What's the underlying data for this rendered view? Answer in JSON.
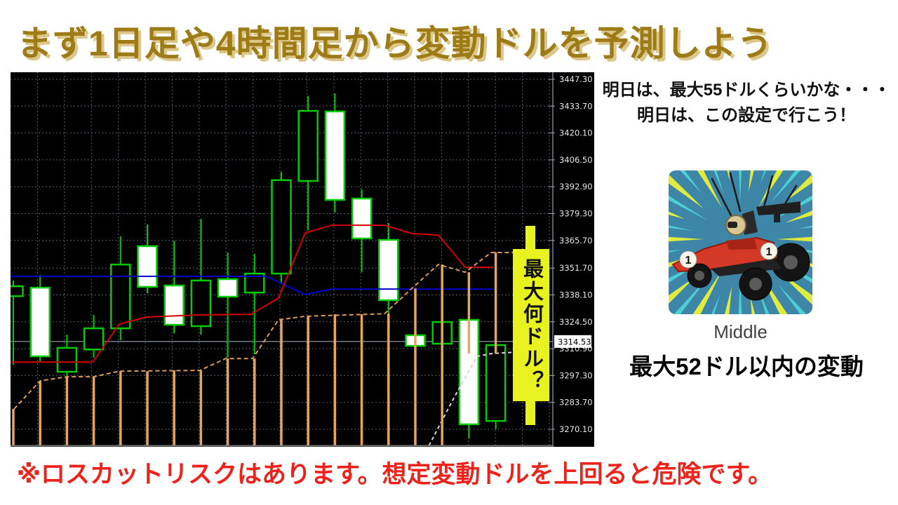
{
  "title": {
    "text": "まず1日足や4時間足から変動ドルを予測しよう",
    "color": "#9d7b16",
    "shadow_color": "#dcc68a"
  },
  "chart_data": {
    "type": "candlestick",
    "description": "MT4-style daily gold (XAU/USD) candlestick chart, black background, grid on",
    "y_axis": {
      "tick_labels": [
        "3447.30",
        "3433.70",
        "3420.10",
        "3406.50",
        "3392.90",
        "3379.30",
        "3365.70",
        "3351.70",
        "3338.10",
        "3324.50",
        "3310.90",
        "3297.30",
        "3283.70",
        "3270.10"
      ],
      "tick_color": "#e8e8e8"
    },
    "current_price": "3314.53",
    "colors": {
      "background": "#000000",
      "grid": "#55606e",
      "candle": "#00cc00",
      "bull_fill": "#ffffff",
      "bear_fill": "#000000",
      "ma_red": "#d40000",
      "ma_blue": "#0000c8",
      "upper_band": "#dc9a55",
      "lower_band": "#e3cfe3",
      "bars": "#e6a55f",
      "price_line": "#8a96a4",
      "axis_line": "#9aa0a8"
    },
    "candles": [
      {
        "o": 3342.5,
        "h": 3345.4,
        "l": 3302.7,
        "c": 3337.5,
        "bull": false
      },
      {
        "o": 3307.0,
        "h": 3348.2,
        "l": 3304.5,
        "c": 3341.8,
        "bull": true
      },
      {
        "o": 3311.3,
        "h": 3318.0,
        "l": 3296.3,
        "c": 3299.2,
        "bull": false
      },
      {
        "o": 3321.2,
        "h": 3327.9,
        "l": 3306.3,
        "c": 3310.5,
        "bull": false
      },
      {
        "o": 3353.5,
        "h": 3367.7,
        "l": 3315.2,
        "c": 3321.2,
        "bull": false
      },
      {
        "o": 3342.2,
        "h": 3373.8,
        "l": 3339.0,
        "c": 3362.8,
        "bull": true
      },
      {
        "o": 3323.0,
        "h": 3365.6,
        "l": 3318.7,
        "c": 3342.9,
        "bull": true
      },
      {
        "o": 3345.4,
        "h": 3376.6,
        "l": 3318.0,
        "c": 3322.3,
        "bull": false
      },
      {
        "o": 3337.2,
        "h": 3359.6,
        "l": 3306.3,
        "c": 3346.1,
        "bull": true
      },
      {
        "o": 3348.9,
        "h": 3358.9,
        "l": 3308.1,
        "c": 3339.3,
        "bull": false
      },
      {
        "o": 3396.2,
        "h": 3400.4,
        "l": 3343.6,
        "c": 3348.9,
        "bull": false
      },
      {
        "o": 3431.3,
        "h": 3438.8,
        "l": 3370.9,
        "c": 3395.8,
        "bull": false
      },
      {
        "o": 3386.2,
        "h": 3440.2,
        "l": 3379.8,
        "c": 3431.0,
        "bull": true
      },
      {
        "o": 3366.7,
        "h": 3391.5,
        "l": 3349.6,
        "c": 3386.9,
        "bull": true
      },
      {
        "o": 3335.4,
        "h": 3374.5,
        "l": 3327.6,
        "c": 3366.0,
        "bull": true
      },
      {
        "o": 3312.3,
        "h": 3320.5,
        "l": 3309.8,
        "c": 3317.7,
        "bull": true
      },
      {
        "o": 3324.4,
        "h": 3325.8,
        "l": 3311.6,
        "c": 3313.4,
        "bull": false
      },
      {
        "o": 3272.6,
        "h": 3329.4,
        "l": 3265.4,
        "c": 3325.5,
        "bull": true
      },
      {
        "o": 3312.7,
        "h": 3318.7,
        "l": 3270.1,
        "c": 3274.3,
        "bull": false
      }
    ],
    "series": {
      "ma_red": [
        [
          -0.1,
          3304.1
        ],
        [
          2.96,
          3304.1
        ],
        [
          3.95,
          3323.3
        ],
        [
          4.95,
          3326.9
        ],
        [
          6.94,
          3328.0
        ],
        [
          8.87,
          3328.3
        ],
        [
          9.89,
          3336.5
        ],
        [
          10.89,
          3369.5
        ],
        [
          11.88,
          3373.4
        ],
        [
          13.85,
          3373.4
        ],
        [
          14.87,
          3369.2
        ],
        [
          15.86,
          3368.4
        ],
        [
          16.86,
          3352.1
        ],
        [
          17.9,
          3352.1
        ]
      ],
      "ma_blue": [
        [
          -0.1,
          3347.5
        ],
        [
          9.45,
          3347.5
        ],
        [
          10.89,
          3338.3
        ],
        [
          11.88,
          3341.1
        ],
        [
          17.9,
          3341.1
        ]
      ],
      "upper_band": [
        [
          0.03,
          3280.4
        ],
        [
          1,
          3294.6
        ],
        [
          2,
          3296.7
        ],
        [
          3,
          3296.7
        ],
        [
          3.95,
          3299.5
        ],
        [
          6.96,
          3299.9
        ],
        [
          7.93,
          3305.9
        ],
        [
          8.93,
          3305.9
        ],
        [
          9.89,
          3325.5
        ],
        [
          10.89,
          3327.3
        ],
        [
          13.85,
          3328.6
        ],
        [
          14.87,
          3341.4
        ],
        [
          15.86,
          3353.5
        ],
        [
          16.86,
          3349.6
        ],
        [
          17.83,
          3359.6
        ],
        [
          18.65,
          3359.6
        ]
      ],
      "lower_band": [
        [
          15.4,
          3259.0
        ],
        [
          16.4,
          3285.0
        ],
        [
          17.3,
          3307.0
        ],
        [
          17.85,
          3308.4
        ],
        [
          20.1,
          3310.2
        ]
      ],
      "bars": [
        [
          0,
          3280.4,
          null
        ],
        [
          1,
          3294.6,
          null
        ],
        [
          2,
          3296.7,
          null
        ],
        [
          3,
          3296.7,
          null
        ],
        [
          4,
          3299.5,
          null
        ],
        [
          5,
          3299.5,
          null
        ],
        [
          6,
          3299.9,
          null
        ],
        [
          7,
          3299.9,
          null
        ],
        [
          8,
          3305.9,
          null
        ],
        [
          9,
          3305.9,
          null
        ],
        [
          10,
          3325.5,
          null
        ],
        [
          11,
          3327.3,
          null
        ],
        [
          12,
          3328.3,
          null
        ],
        [
          13,
          3328.3,
          null
        ],
        [
          14,
          3328.6,
          null
        ],
        [
          15,
          3341.4,
          null
        ],
        [
          16,
          3353.5,
          null
        ],
        [
          17,
          3349.6,
          3308.4
        ],
        [
          18,
          3359.6,
          3308.4
        ]
      ]
    },
    "annotation": {
      "text": "最大何ドル？",
      "bg": "#e7f220",
      "text_color": "#111111"
    }
  },
  "right_panel": {
    "bubble_line1": "明日は、最大55ドルくらいかな・・・",
    "bubble_line2": "明日は、この設定で行こう！",
    "car_card": {
      "number": "1",
      "bg": "#3e86a8",
      "ray_yellow": "#e8f138",
      "ray_cyan": "#4fe3df"
    },
    "card_caption": "Middle",
    "card_subtitle": "最大52ドル以内の変動"
  },
  "footer": {
    "text": "※ロスカットリスクはあります。想定変動ドルを上回ると危険です。",
    "color": "#ed231b"
  }
}
